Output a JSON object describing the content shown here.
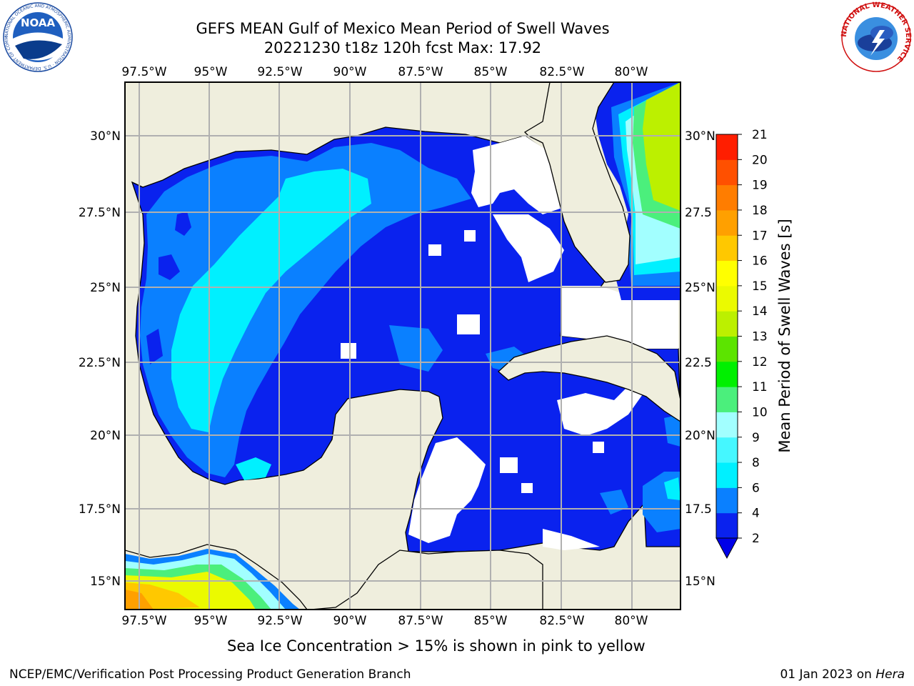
{
  "header": {
    "title_line1": "GEFS MEAN Gulf of Mexico Mean Period of Swell Waves",
    "title_line2": "20221230 t18z 120h fcst   Max: 17.92",
    "left_logo_text": "NOAA",
    "left_logo_ring_text": "NATIONAL OCEANIC AND ATMOSPHERIC ADMINISTRATION · U.S. DEPARTMENT OF COMMERCE ·",
    "right_logo_ring_text": "NATIONAL WEATHER SERVICE"
  },
  "map": {
    "lon_ticks": [
      "97.5°W",
      "95°W",
      "92.5°W",
      "90°W",
      "87.5°W",
      "85°W",
      "82.5°W",
      "80°W"
    ],
    "lat_ticks_left": [
      "30°N",
      "27.5°N",
      "25°N",
      "22.5°N",
      "20°N",
      "17.5°N",
      "15°N"
    ],
    "lat_ticks_right": [
      "30°N",
      "27.5",
      "25°N",
      "22.5",
      "20°N",
      "17.5",
      "15°N"
    ],
    "colors": {
      "land": "#efeedd",
      "no_data": "#ffffff",
      "grid": "#b0b0b0"
    }
  },
  "colorbar": {
    "label": "Mean Period of Swell Waves [s]",
    "ticks": [
      "2",
      "4",
      "6",
      "8",
      "9",
      "10",
      "11",
      "12",
      "13",
      "14",
      "15",
      "16",
      "17",
      "18",
      "19",
      "20",
      "21"
    ],
    "colors": [
      "#0a22ee",
      "#0a80ff",
      "#00f0ff",
      "#45f7ff",
      "#a2ffff",
      "#4bef7c",
      "#00f000",
      "#5ce400",
      "#bcf000",
      "#ebfa00",
      "#ffff00",
      "#ffc800",
      "#ffa000",
      "#ff7d00",
      "#ff5000",
      "#ff1e00"
    ],
    "extend_color": "#0000e8"
  },
  "footer": {
    "note": "Sea Ice Concentration > 15% is shown in pink to yellow",
    "credit_left": "NCEP/EMC/Verification Post Processing Product Generation Branch",
    "credit_date": "01 Jan 2023 on ",
    "credit_host": "Hera"
  }
}
